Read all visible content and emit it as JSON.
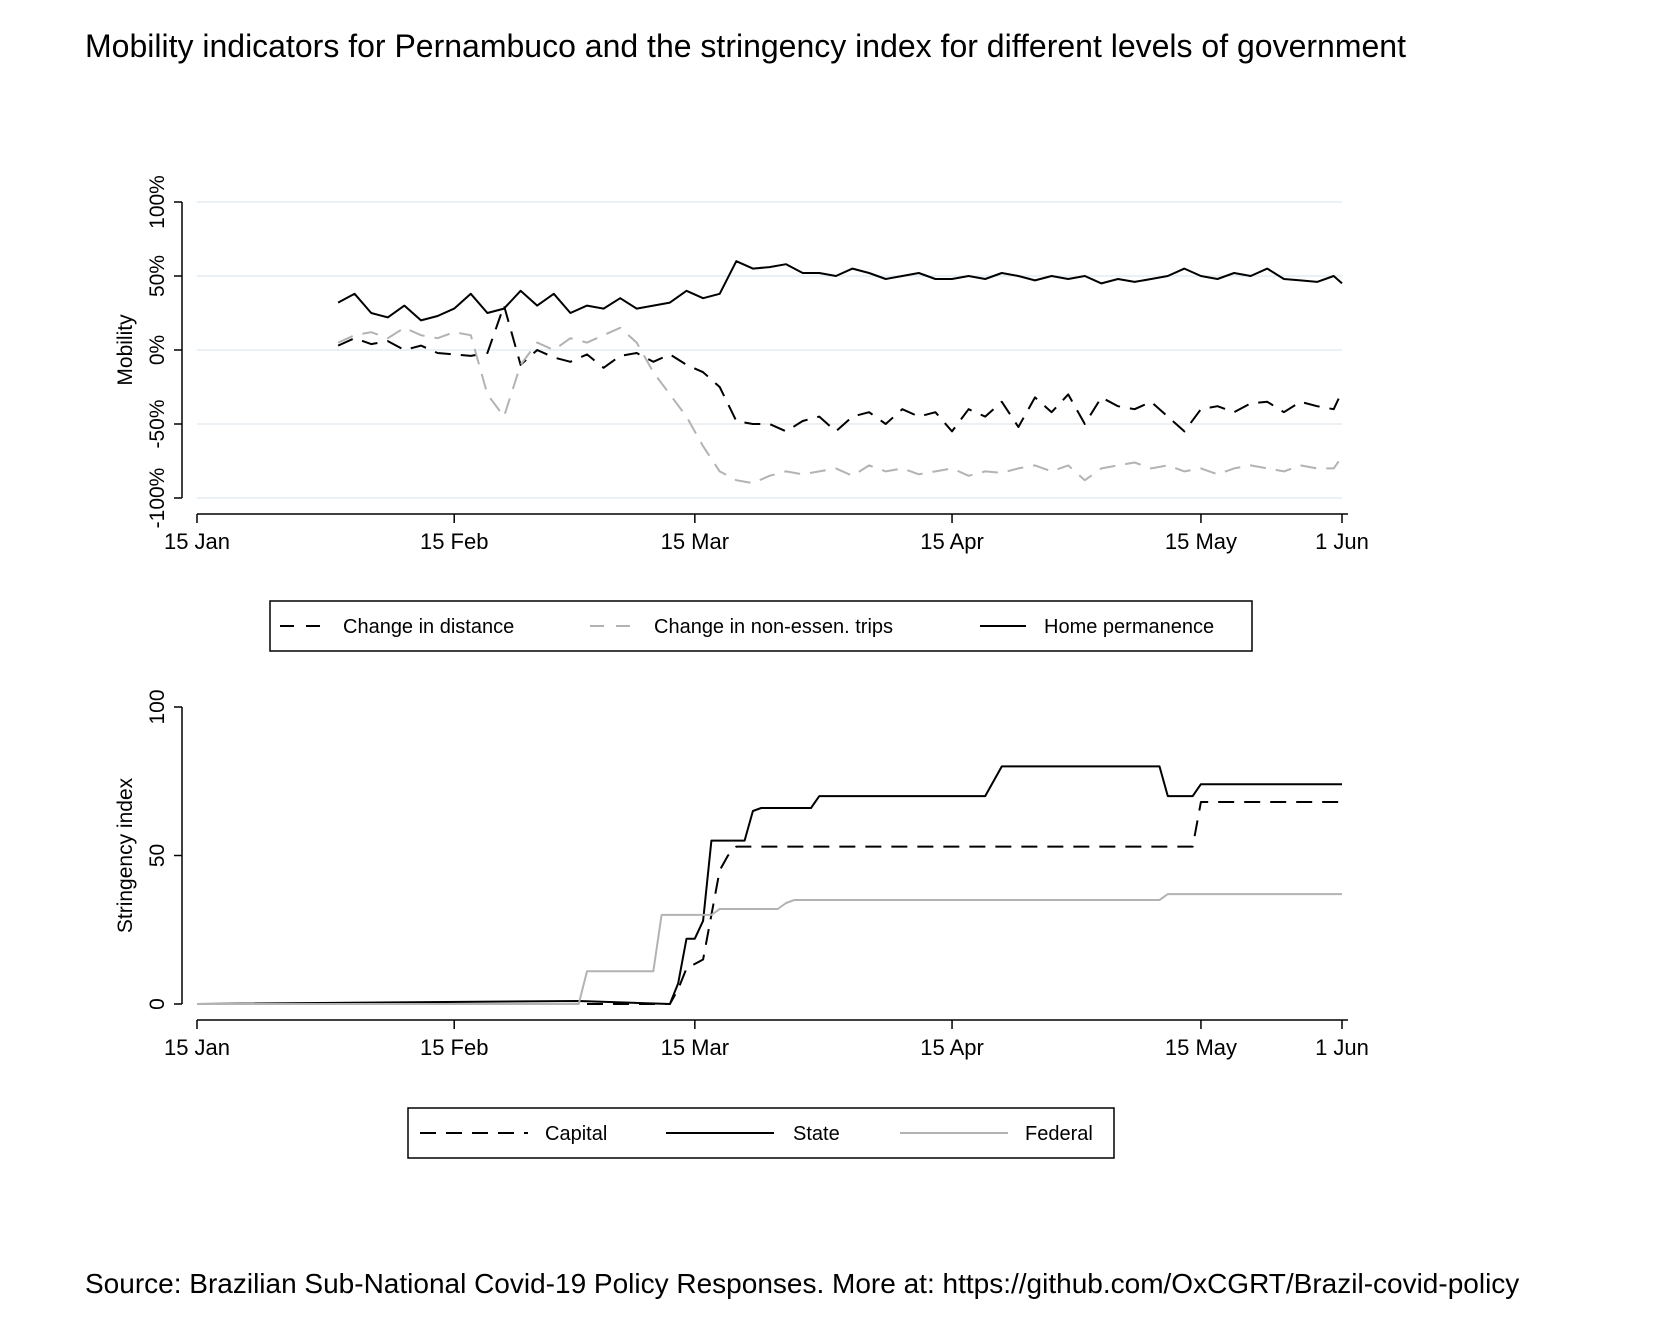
{
  "title": "Mobility indicators for Pernambuco and the stringency index for different levels of government",
  "source": "Source: Brazilian Sub-National Covid-19 Policy Responses. More at: https://github.com/OxCGRT/Brazil-covid-policy",
  "chart_data": [
    {
      "type": "line",
      "ylabel": "Mobility",
      "xlim": [
        "2020-01-15",
        "2020-06-01"
      ],
      "ylim": [
        -100,
        100
      ],
      "xticks": [
        {
          "date": "2020-01-15",
          "label": "15 Jan"
        },
        {
          "date": "2020-02-15",
          "label": "15 Feb"
        },
        {
          "date": "2020-03-15",
          "label": "15 Mar"
        },
        {
          "date": "2020-04-15",
          "label": "15 Apr"
        },
        {
          "date": "2020-05-15",
          "label": "15 May"
        },
        {
          "date": "2020-06-01",
          "label": "1 Jun"
        }
      ],
      "yticks": [
        {
          "value": 100,
          "label": "100%"
        },
        {
          "value": 50,
          "label": "50%"
        },
        {
          "value": 0,
          "label": "0%"
        },
        {
          "value": -50,
          "label": "-50%"
        },
        {
          "value": -100,
          "label": "-100%"
        }
      ],
      "grid": true,
      "legend_position": "bottom",
      "series": [
        {
          "name": "Change in distance",
          "style": "dash",
          "color": "#000000",
          "x": [
            "2020-02-01",
            "2020-02-03",
            "2020-02-05",
            "2020-02-07",
            "2020-02-09",
            "2020-02-11",
            "2020-02-13",
            "2020-02-15",
            "2020-02-17",
            "2020-02-19",
            "2020-02-21",
            "2020-02-23",
            "2020-02-25",
            "2020-02-27",
            "2020-02-29",
            "2020-03-02",
            "2020-03-04",
            "2020-03-06",
            "2020-03-08",
            "2020-03-10",
            "2020-03-12",
            "2020-03-14",
            "2020-03-16",
            "2020-03-18",
            "2020-03-20",
            "2020-03-22",
            "2020-03-24",
            "2020-03-26",
            "2020-03-28",
            "2020-03-30",
            "2020-04-01",
            "2020-04-03",
            "2020-04-05",
            "2020-04-07",
            "2020-04-09",
            "2020-04-11",
            "2020-04-13",
            "2020-04-15",
            "2020-04-17",
            "2020-04-19",
            "2020-04-21",
            "2020-04-23",
            "2020-04-25",
            "2020-04-27",
            "2020-04-29",
            "2020-05-01",
            "2020-05-03",
            "2020-05-05",
            "2020-05-07",
            "2020-05-09",
            "2020-05-11",
            "2020-05-13",
            "2020-05-15",
            "2020-05-17",
            "2020-05-19",
            "2020-05-21",
            "2020-05-23",
            "2020-05-25",
            "2020-05-27",
            "2020-05-29",
            "2020-05-31",
            "2020-06-01"
          ],
          "y": [
            3,
            8,
            4,
            6,
            0,
            3,
            -2,
            -3,
            -4,
            -2,
            30,
            -10,
            0,
            -5,
            -8,
            -3,
            -12,
            -4,
            -2,
            -8,
            -3,
            -10,
            -15,
            -25,
            -48,
            -50,
            -50,
            -55,
            -48,
            -45,
            -55,
            -45,
            -42,
            -50,
            -40,
            -45,
            -42,
            -55,
            -40,
            -45,
            -35,
            -52,
            -32,
            -42,
            -30,
            -50,
            -32,
            -38,
            -40,
            -35,
            -45,
            -55,
            -40,
            -38,
            -42,
            -36,
            -35,
            -42,
            -35,
            -38,
            -40,
            -28
          ]
        },
        {
          "name": "Change in non-essen. trips",
          "style": "dash",
          "color": "#b3b3b3",
          "x": [
            "2020-02-01",
            "2020-02-03",
            "2020-02-05",
            "2020-02-07",
            "2020-02-09",
            "2020-02-11",
            "2020-02-13",
            "2020-02-15",
            "2020-02-17",
            "2020-02-19",
            "2020-02-21",
            "2020-02-23",
            "2020-02-25",
            "2020-02-27",
            "2020-02-29",
            "2020-03-02",
            "2020-03-04",
            "2020-03-06",
            "2020-03-08",
            "2020-03-10",
            "2020-03-12",
            "2020-03-14",
            "2020-03-16",
            "2020-03-18",
            "2020-03-20",
            "2020-03-22",
            "2020-03-24",
            "2020-03-26",
            "2020-03-28",
            "2020-03-30",
            "2020-04-01",
            "2020-04-03",
            "2020-04-05",
            "2020-04-07",
            "2020-04-09",
            "2020-04-11",
            "2020-04-13",
            "2020-04-15",
            "2020-04-17",
            "2020-04-19",
            "2020-04-21",
            "2020-04-23",
            "2020-04-25",
            "2020-04-27",
            "2020-04-29",
            "2020-05-01",
            "2020-05-03",
            "2020-05-05",
            "2020-05-07",
            "2020-05-09",
            "2020-05-11",
            "2020-05-13",
            "2020-05-15",
            "2020-05-17",
            "2020-05-19",
            "2020-05-21",
            "2020-05-23",
            "2020-05-25",
            "2020-05-27",
            "2020-05-29",
            "2020-05-31",
            "2020-06-01"
          ],
          "y": [
            5,
            10,
            12,
            8,
            15,
            10,
            8,
            12,
            10,
            -30,
            -45,
            -10,
            5,
            0,
            8,
            5,
            10,
            15,
            5,
            -15,
            -30,
            -45,
            -65,
            -82,
            -88,
            -90,
            -85,
            -82,
            -84,
            -82,
            -80,
            -85,
            -78,
            -82,
            -80,
            -84,
            -82,
            -80,
            -85,
            -82,
            -83,
            -80,
            -78,
            -82,
            -78,
            -88,
            -80,
            -78,
            -76,
            -80,
            -78,
            -82,
            -80,
            -84,
            -80,
            -78,
            -80,
            -82,
            -78,
            -80,
            -80,
            -72
          ]
        },
        {
          "name": "Home permanence",
          "style": "solid",
          "color": "#000000",
          "x": [
            "2020-02-01",
            "2020-02-03",
            "2020-02-05",
            "2020-02-07",
            "2020-02-09",
            "2020-02-11",
            "2020-02-13",
            "2020-02-15",
            "2020-02-17",
            "2020-02-19",
            "2020-02-21",
            "2020-02-23",
            "2020-02-25",
            "2020-02-27",
            "2020-02-29",
            "2020-03-02",
            "2020-03-04",
            "2020-03-06",
            "2020-03-08",
            "2020-03-10",
            "2020-03-12",
            "2020-03-14",
            "2020-03-16",
            "2020-03-18",
            "2020-03-20",
            "2020-03-22",
            "2020-03-24",
            "2020-03-26",
            "2020-03-28",
            "2020-03-30",
            "2020-04-01",
            "2020-04-03",
            "2020-04-05",
            "2020-04-07",
            "2020-04-09",
            "2020-04-11",
            "2020-04-13",
            "2020-04-15",
            "2020-04-17",
            "2020-04-19",
            "2020-04-21",
            "2020-04-23",
            "2020-04-25",
            "2020-04-27",
            "2020-04-29",
            "2020-05-01",
            "2020-05-03",
            "2020-05-05",
            "2020-05-07",
            "2020-05-09",
            "2020-05-11",
            "2020-05-13",
            "2020-05-15",
            "2020-05-17",
            "2020-05-19",
            "2020-05-21",
            "2020-05-23",
            "2020-05-25",
            "2020-05-27",
            "2020-05-29",
            "2020-05-31",
            "2020-06-01"
          ],
          "y": [
            32,
            38,
            25,
            22,
            30,
            20,
            23,
            28,
            38,
            25,
            28,
            40,
            30,
            38,
            25,
            30,
            28,
            35,
            28,
            30,
            32,
            40,
            35,
            38,
            60,
            55,
            56,
            58,
            52,
            52,
            50,
            55,
            52,
            48,
            50,
            52,
            48,
            48,
            50,
            48,
            52,
            50,
            47,
            50,
            48,
            50,
            45,
            48,
            46,
            48,
            50,
            55,
            50,
            48,
            52,
            50,
            55,
            48,
            47,
            46,
            50,
            45
          ]
        }
      ]
    },
    {
      "type": "line",
      "ylabel": "Stringency index",
      "xlim": [
        "2020-01-15",
        "2020-06-01"
      ],
      "ylim": [
        0,
        100
      ],
      "xticks": [
        {
          "date": "2020-01-15",
          "label": "15 Jan"
        },
        {
          "date": "2020-02-15",
          "label": "15 Feb"
        },
        {
          "date": "2020-03-15",
          "label": "15 Mar"
        },
        {
          "date": "2020-04-15",
          "label": "15 Apr"
        },
        {
          "date": "2020-05-15",
          "label": "15 May"
        },
        {
          "date": "2020-06-01",
          "label": "1 Jun"
        }
      ],
      "yticks": [
        {
          "value": 100,
          "label": "100"
        },
        {
          "value": 50,
          "label": "50"
        },
        {
          "value": 0,
          "label": "0"
        }
      ],
      "grid": false,
      "legend_position": "bottom",
      "series": [
        {
          "name": "Capital",
          "style": "dash",
          "color": "#000000",
          "x": [
            "2020-01-15",
            "2020-03-02",
            "2020-03-12",
            "2020-03-13",
            "2020-03-14",
            "2020-03-16",
            "2020-03-17",
            "2020-03-18",
            "2020-03-19",
            "2020-03-20",
            "2020-05-14",
            "2020-05-15",
            "2020-06-01"
          ],
          "y": [
            0,
            0,
            0,
            5,
            12,
            15,
            30,
            45,
            50,
            53,
            53,
            68,
            68
          ]
        },
        {
          "name": "State",
          "style": "solid",
          "color": "#000000",
          "x": [
            "2020-01-15",
            "2020-03-01",
            "2020-03-12",
            "2020-03-13",
            "2020-03-14",
            "2020-03-15",
            "2020-03-16",
            "2020-03-17",
            "2020-03-18",
            "2020-03-19",
            "2020-03-21",
            "2020-03-22",
            "2020-03-23",
            "2020-03-29",
            "2020-03-30",
            "2020-04-19",
            "2020-04-20",
            "2020-04-21",
            "2020-05-10",
            "2020-05-11",
            "2020-05-14",
            "2020-05-15",
            "2020-06-01"
          ],
          "y": [
            0,
            1,
            0,
            7,
            22,
            22,
            28,
            55,
            55,
            55,
            55,
            65,
            66,
            66,
            70,
            70,
            75,
            80,
            80,
            70,
            70,
            74,
            74
          ]
        },
        {
          "name": "Federal",
          "style": "solid",
          "color": "#b3b3b3",
          "x": [
            "2020-01-15",
            "2020-03-01",
            "2020-03-02",
            "2020-03-10",
            "2020-03-11",
            "2020-03-15",
            "2020-03-17",
            "2020-03-18",
            "2020-03-20",
            "2020-03-25",
            "2020-03-26",
            "2020-03-27",
            "2020-05-10",
            "2020-05-11",
            "2020-06-01"
          ],
          "y": [
            0,
            0,
            11,
            11,
            30,
            30,
            30,
            32,
            32,
            32,
            34,
            35,
            35,
            37,
            37
          ]
        }
      ]
    }
  ]
}
